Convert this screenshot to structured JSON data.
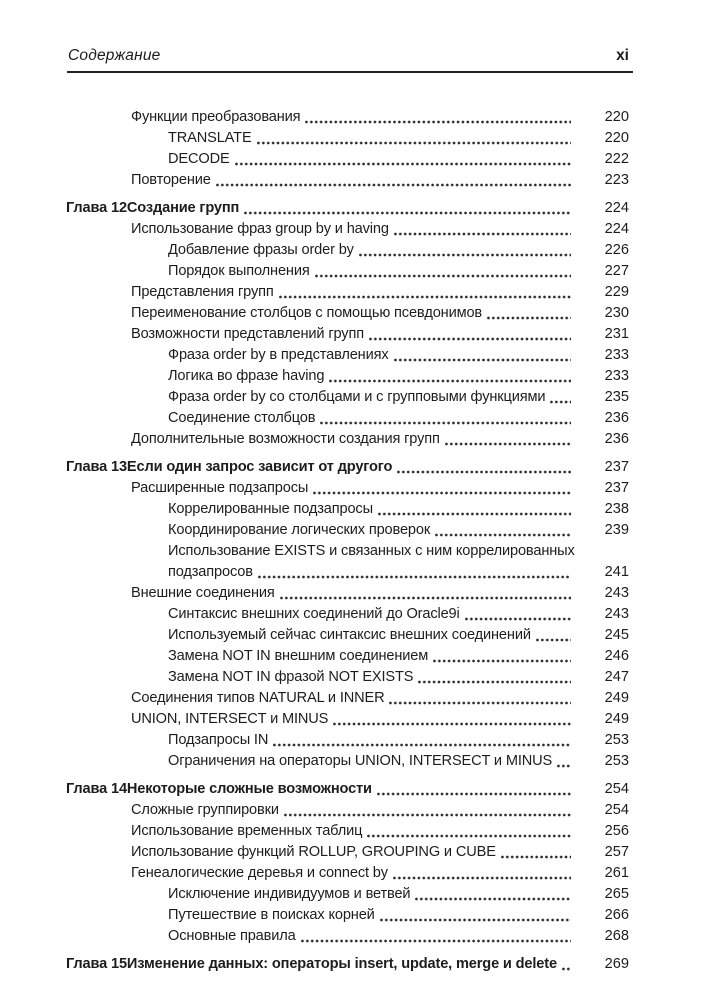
{
  "header": {
    "running_title": "Содержание",
    "page_number": "xi"
  },
  "colors": {
    "paper": "#ffffff",
    "text": "#1d1d1d",
    "rule": "#242424",
    "dot_leader": "#2e2e2e"
  },
  "toc": [
    {
      "t": "s1",
      "text": "Функции преобразования",
      "page": "220"
    },
    {
      "t": "s2",
      "text": "TRANSLATE",
      "page": "220"
    },
    {
      "t": "s2",
      "text": "DECODE",
      "page": "222"
    },
    {
      "t": "s1",
      "text": "Повторение",
      "page": "223"
    },
    {
      "t": "ch",
      "label": "Глава 12",
      "text": "Создание групп",
      "page": "224"
    },
    {
      "t": "s1",
      "text": "Использование фраз group by и having",
      "page": "224"
    },
    {
      "t": "s2",
      "text": "Добавление фразы order by",
      "page": "226"
    },
    {
      "t": "s2",
      "text": "Порядок выполнения",
      "page": "227"
    },
    {
      "t": "s1",
      "text": "Представления групп",
      "page": "229"
    },
    {
      "t": "s1",
      "text": "Переименование столбцов с помощью псевдонимов",
      "page": "230"
    },
    {
      "t": "s1",
      "text": "Возможности представлений групп",
      "page": "231"
    },
    {
      "t": "s2",
      "text": "Фраза order by в представлениях",
      "page": "233"
    },
    {
      "t": "s2",
      "text": "Логика во фразе having",
      "page": "233"
    },
    {
      "t": "s2",
      "text": "Фраза order by со столбцами и с групповыми функциями",
      "page": "235"
    },
    {
      "t": "s2",
      "text": "Соединение столбцов",
      "page": "236"
    },
    {
      "t": "s1",
      "text": "Дополнительные возможности создания групп",
      "page": "236"
    },
    {
      "t": "ch",
      "label": "Глава 13",
      "text": "Если один запрос зависит от другого",
      "page": "237"
    },
    {
      "t": "s1",
      "text": "Расширенные подзапросы",
      "page": "237"
    },
    {
      "t": "s2",
      "text": "Коррелированные подзапросы",
      "page": "238"
    },
    {
      "t": "s2",
      "text": "Координирование логических проверок",
      "page": "239"
    },
    {
      "t": "s2",
      "text": "Использование EXISTS и связанных с ним коррелированных",
      "cont": "подзапросов",
      "page": "241"
    },
    {
      "t": "s1",
      "text": "Внешние соединения",
      "page": "243"
    },
    {
      "t": "s2",
      "text": "Синтаксис внешних соединений до Oracle9i",
      "page": "243"
    },
    {
      "t": "s2",
      "text": "Используемый сейчас синтаксис внешних соединений",
      "page": "245"
    },
    {
      "t": "s2",
      "text": "Замена NOT IN внешним соединением",
      "page": "246"
    },
    {
      "t": "s2",
      "text": "Замена NOT IN фразой NOT EXISTS",
      "page": "247"
    },
    {
      "t": "s1",
      "text": "Соединения типов NATURAL и INNER",
      "page": "249"
    },
    {
      "t": "s1",
      "text": "UNION, INTERSECT и MINUS",
      "page": "249"
    },
    {
      "t": "s2",
      "text": "Подзапросы IN",
      "page": "253"
    },
    {
      "t": "s2",
      "text": "Ограничения на операторы UNION, INTERSECT и MINUS",
      "page": "253"
    },
    {
      "t": "ch",
      "label": "Глава 14",
      "text": "Некоторые сложные возможности",
      "page": "254"
    },
    {
      "t": "s1",
      "text": "Сложные группировки",
      "page": "254"
    },
    {
      "t": "s1",
      "text": "Использование временных таблиц",
      "page": "256"
    },
    {
      "t": "s1",
      "text": "Использование функций ROLLUP, GROUPING и CUBE",
      "page": "257"
    },
    {
      "t": "s1",
      "text": "Генеалогические деревья и connect by",
      "page": "261"
    },
    {
      "t": "s2",
      "text": "Исключение индивидуумов и ветвей",
      "page": "265"
    },
    {
      "t": "s2",
      "text": "Путешествие в поисках корней",
      "page": "266"
    },
    {
      "t": "s2",
      "text": "Основные правила",
      "page": "268"
    },
    {
      "t": "ch",
      "label": "Глава 15",
      "text": "Изменение данных: операторы insert, update, merge и delete",
      "page": "269"
    }
  ]
}
